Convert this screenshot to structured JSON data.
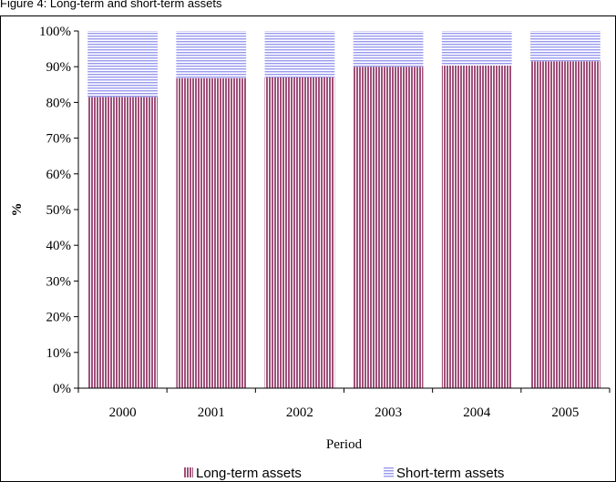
{
  "page": {
    "title": "Figure 4: Long-term and short-term assets"
  },
  "chart_data": {
    "type": "bar",
    "stacked": true,
    "normalized_percent": true,
    "title": "",
    "xlabel": "Period",
    "ylabel": "%",
    "ylim": [
      0,
      100
    ],
    "yticks": [
      "0%",
      "10%",
      "20%",
      "30%",
      "40%",
      "50%",
      "60%",
      "70%",
      "80%",
      "90%",
      "100%"
    ],
    "categories": [
      "2000",
      "2001",
      "2002",
      "2003",
      "2004",
      "2005"
    ],
    "series": [
      {
        "name": "Long-term assets",
        "values": [
          81.5,
          86.8,
          87.0,
          90.0,
          90.3,
          91.5
        ],
        "color": "#a0507a",
        "pattern": "vertical-stripes"
      },
      {
        "name": "Short-term assets",
        "values": [
          18.5,
          13.2,
          13.0,
          10.0,
          9.7,
          8.5
        ],
        "color": "#9999ee",
        "pattern": "horizontal-stripes"
      }
    ],
    "grid": false,
    "legend_position": "bottom"
  }
}
